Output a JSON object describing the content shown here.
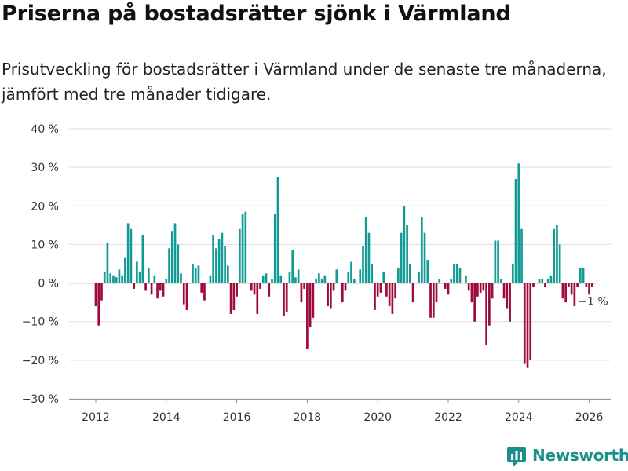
{
  "header": {
    "title": "Priserna på bostadsrätter sjönk i Värmland",
    "subtitle": "Prisutveckling för bostadsrätter i Värmland under de senaste tre månaderna, jämfört med tre månader tidigare."
  },
  "brand": {
    "name": "Newsworthy"
  },
  "colors": {
    "positive": "#129b95",
    "negative": "#9e0a3c",
    "grid": "#dddddd",
    "zero_line": "#333333"
  },
  "chart_data": {
    "type": "bar",
    "title": "Priserna på bostadsrätter sjönk i Värmland",
    "xlabel": "",
    "ylabel": "",
    "ylim": [
      -30,
      40
    ],
    "y_ticks": [
      40,
      30,
      20,
      10,
      0,
      -10,
      -20,
      -30
    ],
    "y_tick_labels": [
      "40 %",
      "30 %",
      "20 %",
      "10 %",
      "0 %",
      "−10 %",
      "−20 %",
      "−30 %"
    ],
    "x_ticks": [
      2012,
      2014,
      2016,
      2018,
      2020,
      2022,
      2024,
      2026
    ],
    "x_tick_labels": [
      "2012",
      "2014",
      "2016",
      "2018",
      "2020",
      "2022",
      "2024",
      "2026"
    ],
    "x_start": 2012.0,
    "x_step_years": 0.08333,
    "series": [
      {
        "name": "Prisutveckling (%)",
        "values": [
          -6,
          -11,
          -4.5,
          3,
          10.5,
          2.5,
          2,
          1.5,
          3.5,
          2,
          6.5,
          15.5,
          14,
          -1.5,
          5.5,
          3,
          12.5,
          -2,
          4,
          -3,
          2,
          -4,
          -2,
          -3.5,
          1,
          9,
          13.5,
          15.5,
          10,
          2.5,
          -5.5,
          -7,
          0,
          5,
          4,
          4.5,
          -2.5,
          -4.5,
          0,
          2,
          12.5,
          9,
          11.5,
          13,
          9.5,
          4.5,
          -8,
          -7,
          -3.5,
          14,
          18,
          18.5,
          0,
          -2,
          -3,
          -8,
          -1.5,
          2,
          2.5,
          -3.5,
          1,
          18,
          27.5,
          2,
          -8.5,
          -7.5,
          3,
          8.5,
          1.5,
          3.5,
          -5,
          -1.5,
          -17,
          -11.5,
          -9,
          1,
          2.5,
          1,
          2,
          -6,
          -6.5,
          -2,
          3.5,
          0,
          -5,
          -2,
          3,
          5.5,
          1,
          0,
          3.5,
          9.5,
          17,
          13,
          5,
          -7,
          -3.5,
          -2.5,
          3,
          -3.5,
          -6,
          -8,
          -4,
          4,
          13,
          20,
          15,
          5,
          -5,
          0,
          3,
          17,
          13,
          6,
          -9,
          -9,
          -5,
          1,
          0,
          -1.5,
          -3,
          1,
          5,
          5,
          4,
          0,
          2,
          -2,
          -5,
          -10,
          -3.5,
          -2.5,
          -2,
          -16,
          -11,
          -4,
          11,
          11,
          1,
          -4,
          -6.5,
          -10,
          5,
          27,
          31,
          14,
          -21,
          -22,
          -20,
          -1,
          0,
          1,
          1,
          -1,
          1,
          2,
          14,
          15,
          10,
          -4,
          -5,
          -1,
          -3,
          -6,
          -1,
          4,
          4,
          -1,
          -3,
          -1
        ]
      }
    ],
    "annotation": {
      "label": "−1 %",
      "value": -1
    }
  }
}
